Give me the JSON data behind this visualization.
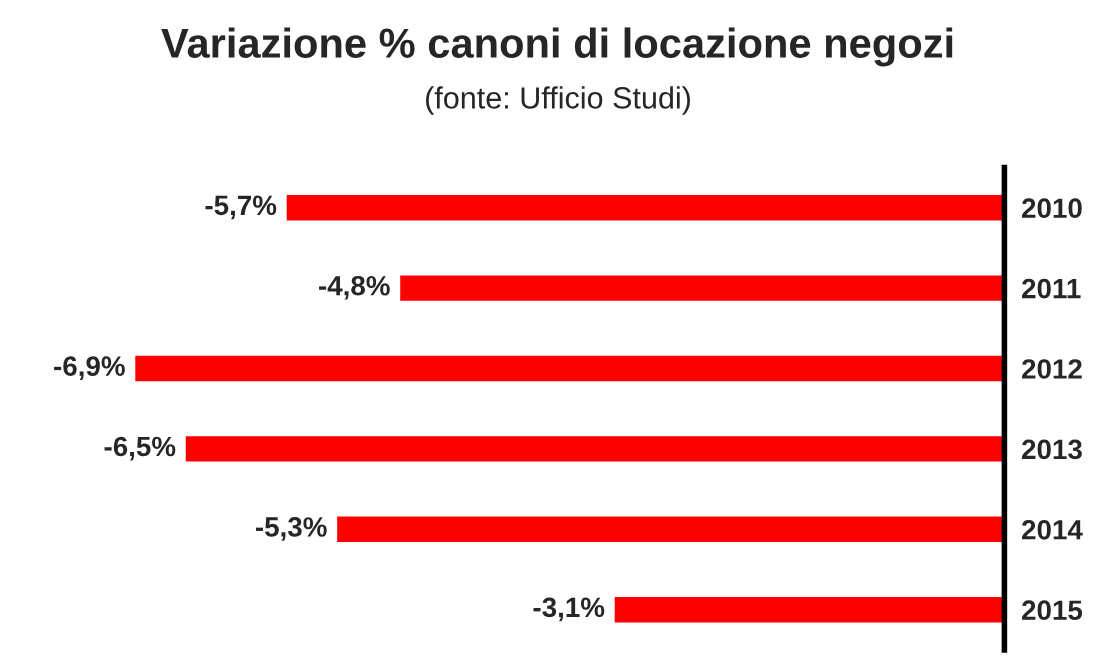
{
  "chart_data": {
    "type": "bar",
    "orientation": "horizontal",
    "title": "Variazione % canoni di locazione negozi",
    "subtitle": "(fonte: Ufficio Studi)",
    "categories": [
      "2010",
      "2011",
      "2012",
      "2013",
      "2014",
      "2015"
    ],
    "values": [
      -5.7,
      -4.8,
      -6.9,
      -6.5,
      -5.3,
      -3.1
    ],
    "value_labels": [
      "-5,7%",
      "-4,8%",
      "-6,9%",
      "-6,5%",
      "-5,3%",
      "-3,1%"
    ],
    "color": "#ff0000"
  }
}
